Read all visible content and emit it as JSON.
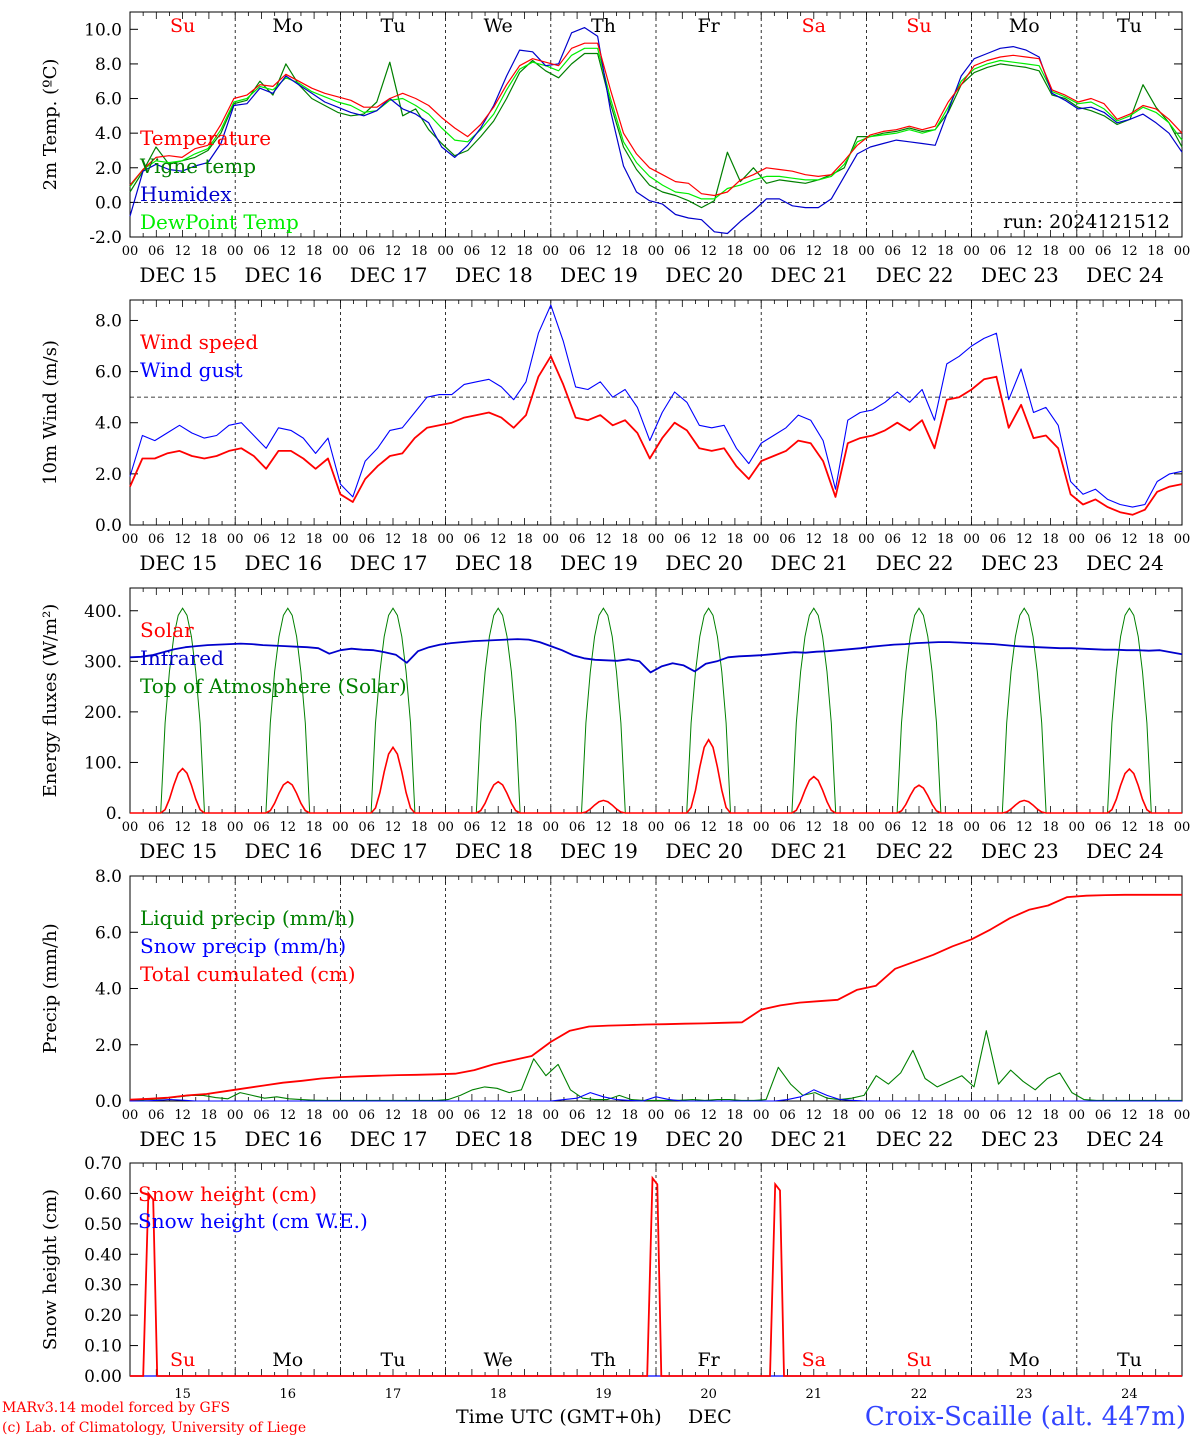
{
  "run_label": "run: 2024121512",
  "footer": {
    "model": "MARv3.14 model forced by GFS",
    "lab": "(c) Lab. of Climatology, University of Liege",
    "xlabel": "Time UTC (GMT+0h)",
    "month": "DEC",
    "station": "Croix-Scaille (alt. 447m)"
  },
  "hour_ticks": [
    "00",
    "06",
    "12",
    "18"
  ],
  "end_tick": "00",
  "dates": [
    "DEC 15",
    "DEC 16",
    "DEC 17",
    "DEC 18",
    "DEC 19",
    "DEC 20",
    "DEC 21",
    "DEC 22",
    "DEC 23",
    "DEC 24"
  ],
  "day_numbers": [
    "15",
    "16",
    "17",
    "18",
    "19",
    "20",
    "21",
    "22",
    "23",
    "24"
  ],
  "weekdays": [
    {
      "label": "Su",
      "color": "#ff0000"
    },
    {
      "label": "Mo",
      "color": "#000000"
    },
    {
      "label": "Tu",
      "color": "#000000"
    },
    {
      "label": "We",
      "color": "#000000"
    },
    {
      "label": "Th",
      "color": "#000000"
    },
    {
      "label": "Fr",
      "color": "#000000"
    },
    {
      "label": "Sa",
      "color": "#ff0000"
    },
    {
      "label": "Su",
      "color": "#ff0000"
    },
    {
      "label": "Mo",
      "color": "#000000"
    },
    {
      "label": "Tu",
      "color": "#000000"
    }
  ],
  "chart_data": [
    {
      "type": "line",
      "ylabel": "2m Temp. (ºC)",
      "ylim": [
        -2,
        11
      ],
      "yticks": [
        "-2.0",
        "0.0",
        "2.0",
        "4.0",
        "6.0",
        "8.0",
        "10.0"
      ],
      "ytick_values": [
        -2,
        0,
        2,
        4,
        6,
        8,
        10
      ],
      "hline": 0,
      "x": "hours since DEC 15 00 UTC, 3-hourly, 0..240",
      "series": [
        {
          "name": "Temperature",
          "color": "#ff0000",
          "values": [
            1.0,
            1.9,
            2.6,
            2.7,
            2.6,
            3.1,
            3.3,
            4.5,
            6.0,
            6.2,
            6.8,
            6.7,
            7.4,
            7.0,
            6.6,
            6.3,
            6.1,
            5.9,
            5.5,
            5.5,
            6.0,
            6.3,
            6.0,
            5.6,
            4.9,
            4.3,
            3.8,
            4.5,
            5.5,
            6.8,
            7.9,
            8.3,
            8.1,
            7.9,
            8.9,
            9.2,
            9.2,
            6.5,
            4.0,
            2.8,
            2.0,
            1.6,
            1.2,
            1.1,
            0.5,
            0.4,
            0.6,
            1.3,
            1.6,
            2.0,
            1.9,
            1.8,
            1.6,
            1.5,
            1.6,
            2.4,
            3.3,
            3.9,
            4.1,
            4.2,
            4.4,
            4.2,
            4.4,
            5.8,
            6.8,
            7.9,
            8.2,
            8.4,
            8.5,
            8.4,
            8.3,
            6.5,
            6.2,
            5.8,
            6.0,
            5.7,
            4.8,
            5.1,
            5.6,
            5.4,
            4.8,
            4.0
          ]
        },
        {
          "name": "Vigne temp",
          "color": "#008000",
          "values": [
            0.6,
            1.8,
            3.2,
            2.2,
            2.4,
            2.6,
            3.0,
            4.0,
            5.7,
            5.9,
            7.0,
            6.2,
            8.0,
            6.8,
            6.0,
            5.6,
            5.2,
            5.0,
            5.1,
            5.8,
            8.1,
            5.0,
            5.4,
            4.2,
            3.4,
            2.7,
            3.0,
            3.8,
            4.7,
            6.0,
            7.5,
            8.2,
            7.6,
            7.2,
            8.0,
            8.6,
            8.6,
            5.7,
            3.2,
            1.9,
            1.0,
            0.6,
            0.4,
            0.1,
            -0.3,
            0.1,
            2.9,
            1.2,
            2.0,
            1.1,
            1.3,
            1.2,
            1.1,
            1.3,
            1.6,
            2.0,
            3.8,
            3.8,
            4.0,
            4.1,
            4.3,
            4.1,
            4.2,
            5.2,
            6.8,
            7.5,
            7.8,
            8.0,
            7.9,
            7.8,
            7.6,
            6.2,
            6.0,
            5.5,
            5.3,
            5.0,
            4.5,
            4.8,
            6.8,
            5.5,
            4.6,
            3.2
          ]
        },
        {
          "name": "Humidex",
          "color": "#0000cc",
          "values": [
            -0.8,
            1.8,
            2.2,
            1.9,
            1.8,
            2.1,
            2.3,
            3.4,
            5.6,
            5.7,
            6.6,
            6.3,
            7.3,
            6.8,
            6.3,
            5.8,
            5.5,
            5.2,
            5.0,
            5.3,
            6.0,
            5.4,
            5.1,
            4.6,
            3.2,
            2.6,
            3.3,
            4.3,
            5.6,
            7.3,
            8.8,
            8.7,
            7.9,
            8.0,
            9.8,
            10.1,
            9.6,
            5.3,
            2.1,
            0.6,
            0.1,
            -0.1,
            -0.7,
            -0.9,
            -1.0,
            -1.7,
            -1.8,
            -1.1,
            -0.5,
            0.2,
            0.2,
            -0.2,
            -0.3,
            -0.3,
            0.2,
            1.5,
            2.8,
            3.2,
            3.4,
            3.6,
            3.5,
            3.4,
            3.3,
            5.3,
            7.3,
            8.3,
            8.6,
            8.9,
            9.0,
            8.8,
            8.4,
            6.3,
            5.9,
            5.4,
            5.5,
            5.2,
            4.6,
            4.8,
            5.1,
            4.6,
            4.0,
            2.9
          ]
        },
        {
          "name": "DewPoint Temp",
          "color": "#00ee00",
          "values": [
            0.9,
            1.9,
            2.4,
            2.3,
            2.4,
            2.8,
            3.1,
            4.2,
            5.8,
            6.0,
            6.7,
            6.5,
            7.2,
            6.9,
            6.4,
            6.1,
            5.8,
            5.6,
            5.2,
            5.3,
            5.9,
            6.0,
            5.6,
            5.1,
            4.3,
            3.6,
            3.5,
            4.2,
            5.1,
            6.5,
            7.7,
            8.1,
            7.9,
            7.6,
            8.5,
            8.9,
            8.9,
            6.0,
            3.5,
            2.3,
            1.5,
            1.0,
            0.6,
            0.5,
            0.2,
            0.2,
            0.8,
            1.0,
            1.3,
            1.5,
            1.5,
            1.4,
            1.3,
            1.3,
            1.5,
            2.2,
            3.5,
            3.8,
            3.9,
            4.0,
            4.2,
            4.0,
            4.2,
            5.5,
            7.0,
            7.7,
            8.0,
            8.2,
            8.1,
            8.0,
            7.9,
            6.4,
            6.1,
            5.7,
            5.8,
            5.4,
            4.7,
            5.0,
            5.5,
            5.2,
            4.6,
            3.6
          ]
        }
      ]
    },
    {
      "type": "line",
      "ylabel": "10m Wind (m/s)",
      "ylim": [
        0,
        8.8
      ],
      "yticks": [
        "0.0",
        "2.0",
        "4.0",
        "6.0",
        "8.0"
      ],
      "ytick_values": [
        0,
        2,
        4,
        6,
        8
      ],
      "hline": 5,
      "series": [
        {
          "name": "Wind speed",
          "color": "#ff0000",
          "values": [
            1.5,
            2.6,
            2.6,
            2.8,
            2.9,
            2.7,
            2.6,
            2.7,
            2.9,
            3.0,
            2.7,
            2.2,
            2.9,
            2.9,
            2.6,
            2.2,
            2.6,
            1.2,
            0.9,
            1.8,
            2.3,
            2.7,
            2.8,
            3.4,
            3.8,
            3.9,
            4.0,
            4.2,
            4.3,
            4.4,
            4.2,
            3.8,
            4.3,
            5.8,
            6.6,
            5.5,
            4.2,
            4.1,
            4.3,
            3.9,
            4.1,
            3.6,
            2.6,
            3.4,
            4.0,
            3.7,
            3.0,
            2.9,
            3.0,
            2.3,
            1.8,
            2.5,
            2.7,
            2.9,
            3.3,
            3.2,
            2.5,
            1.1,
            3.2,
            3.4,
            3.5,
            3.7,
            4.0,
            3.7,
            4.1,
            3.0,
            4.9,
            5.0,
            5.3,
            5.7,
            5.8,
            3.8,
            4.7,
            3.4,
            3.5,
            3.0,
            1.2,
            0.8,
            1.0,
            0.7,
            0.5,
            0.4,
            0.6,
            1.3,
            1.5,
            1.6
          ]
        },
        {
          "name": "Wind gust",
          "color": "#0000ff",
          "values": [
            1.9,
            3.5,
            3.3,
            3.6,
            3.9,
            3.6,
            3.4,
            3.5,
            3.9,
            4.0,
            3.5,
            3.0,
            3.8,
            3.7,
            3.4,
            2.8,
            3.4,
            1.6,
            1.1,
            2.5,
            3.0,
            3.7,
            3.8,
            4.4,
            5.0,
            5.1,
            5.1,
            5.5,
            5.6,
            5.7,
            5.4,
            4.9,
            5.6,
            7.5,
            8.6,
            7.2,
            5.4,
            5.3,
            5.6,
            5.0,
            5.3,
            4.6,
            3.3,
            4.4,
            5.2,
            4.8,
            3.9,
            3.8,
            3.9,
            3.0,
            2.4,
            3.2,
            3.5,
            3.8,
            4.3,
            4.1,
            3.3,
            1.4,
            4.1,
            4.4,
            4.5,
            4.8,
            5.2,
            4.8,
            5.3,
            4.1,
            6.3,
            6.6,
            7.0,
            7.3,
            7.5,
            4.9,
            6.1,
            4.4,
            4.6,
            3.9,
            1.7,
            1.2,
            1.4,
            1.0,
            0.8,
            0.7,
            0.8,
            1.7,
            2.0,
            2.1
          ]
        }
      ]
    },
    {
      "type": "line",
      "ylabel": "Energy fluxes (W/m²)",
      "ylim": [
        0,
        445
      ],
      "yticks": [
        "0.",
        "100.",
        "200.",
        "300.",
        "400."
      ],
      "ytick_values": [
        0,
        100,
        200,
        300,
        400
      ],
      "daily_solar_peak": [
        88,
        62,
        130,
        62,
        25,
        145,
        72,
        55,
        25,
        87
      ],
      "daily_toa_peak": [
        405,
        405,
        405,
        405,
        405,
        405,
        405,
        405,
        405,
        405
      ],
      "series": [
        {
          "name": "Solar",
          "color": "#ff0000"
        },
        {
          "name": "Infrared",
          "color": "#0000cc",
          "values": [
            308,
            309,
            312,
            318,
            324,
            328,
            330,
            332,
            333,
            334,
            335,
            334,
            332,
            331,
            330,
            329,
            328,
            326,
            315,
            322,
            325,
            323,
            322,
            318,
            313,
            297,
            320,
            328,
            333,
            336,
            338,
            340,
            341,
            342,
            343,
            344,
            343,
            338,
            330,
            322,
            312,
            306,
            303,
            302,
            301,
            304,
            300,
            278,
            290,
            296,
            292,
            280,
            295,
            300,
            308,
            310,
            311,
            312,
            314,
            316,
            318,
            317,
            319,
            320,
            322,
            324,
            326,
            329,
            331,
            333,
            334,
            336,
            337,
            338,
            338,
            337,
            336,
            335,
            334,
            332,
            330,
            329,
            328,
            327,
            326,
            326,
            325,
            324,
            323,
            323,
            322,
            322,
            321,
            322,
            318,
            314
          ]
        },
        {
          "name": "Top of Atmosphere (Solar)",
          "color": "#008000"
        }
      ]
    },
    {
      "type": "line",
      "ylabel": "Precip (mm/h)",
      "ylim": [
        0,
        8
      ],
      "yticks": [
        "0.0",
        "2.0",
        "4.0",
        "6.0",
        "8.0"
      ],
      "ytick_values": [
        0,
        2,
        4,
        6,
        8
      ],
      "series": [
        {
          "name": "Liquid precip (mm/h)",
          "color": "#008000",
          "values": [
            0.02,
            0.04,
            0.06,
            0.1,
            0.15,
            0.2,
            0.2,
            0.12,
            0.08,
            0.3,
            0.2,
            0.1,
            0.15,
            0.08,
            0.05,
            0.03,
            0.02,
            0.02,
            0.02,
            0.02,
            0.02,
            0.02,
            0.02,
            0.02,
            0.02,
            0.02,
            0.05,
            0.2,
            0.4,
            0.5,
            0.45,
            0.3,
            0.4,
            1.5,
            0.9,
            1.3,
            0.4,
            0.1,
            0.05,
            0.05,
            0.2,
            0.05,
            0.02,
            0.02,
            0.02,
            0.03,
            0.05,
            0.02,
            0.05,
            0.05,
            0.02,
            0.02,
            0.05,
            1.2,
            0.6,
            0.2,
            0.3,
            0.1,
            0.05,
            0.1,
            0.2,
            0.9,
            0.6,
            1.0,
            1.8,
            0.8,
            0.5,
            0.7,
            0.9,
            0.5,
            2.5,
            0.6,
            1.1,
            0.7,
            0.4,
            0.8,
            1.0,
            0.3,
            0.05,
            0.02,
            0.02,
            0.02,
            0.02,
            0.02,
            0.02,
            0.02,
            0.02
          ]
        },
        {
          "name": "Snow precip (mm/h)",
          "color": "#0000ff",
          "values": [
            0.0,
            0.0,
            0.02,
            0.05,
            0.03,
            0.0,
            0.0,
            0.0,
            0.0,
            0.0,
            0.0,
            0.0,
            0.0,
            0.0,
            0.0,
            0.0,
            0.0,
            0.0,
            0.0,
            0.0,
            0.0,
            0.0,
            0.0,
            0.0,
            0.0,
            0.0,
            0.0,
            0.0,
            0.0,
            0.0,
            0.0,
            0.0,
            0.0,
            0.05,
            0.1,
            0.3,
            0.15,
            0.05,
            0.02,
            0.0,
            0.15,
            0.05,
            0.0,
            0.0,
            0.0,
            0.0,
            0.0,
            0.0,
            0.0,
            0.0,
            0.05,
            0.15,
            0.4,
            0.2,
            0.05,
            0.02,
            0.0,
            0.0,
            0.0,
            0.0,
            0.0,
            0.0,
            0.0,
            0.0,
            0.0,
            0.0,
            0.0,
            0.0,
            0.0,
            0.0,
            0.0,
            0.0,
            0.0,
            0.0,
            0.0,
            0.0,
            0.0,
            0.0,
            0.0,
            0.0,
            0.0
          ]
        },
        {
          "name": "Total cumulated (cm)",
          "color": "#ff0000",
          "values": [
            0.05,
            0.08,
            0.12,
            0.2,
            0.25,
            0.35,
            0.45,
            0.55,
            0.65,
            0.72,
            0.8,
            0.85,
            0.88,
            0.9,
            0.92,
            0.93,
            0.95,
            0.97,
            1.1,
            1.3,
            1.45,
            1.6,
            2.1,
            2.5,
            2.65,
            2.68,
            2.7,
            2.72,
            2.73,
            2.75,
            2.76,
            2.78,
            2.8,
            3.25,
            3.4,
            3.5,
            3.55,
            3.6,
            3.95,
            4.1,
            4.7,
            4.95,
            5.2,
            5.5,
            5.75,
            6.1,
            6.5,
            6.8,
            6.95,
            7.25,
            7.3,
            7.32,
            7.33,
            7.33,
            7.33,
            7.33
          ]
        }
      ]
    },
    {
      "type": "line",
      "ylabel": "Snow height (cm)",
      "ylim": [
        0,
        0.7
      ],
      "yticks": [
        "0.00",
        "0.10",
        "0.20",
        "0.30",
        "0.40",
        "0.50",
        "0.60",
        "0.70"
      ],
      "ytick_values": [
        0,
        0.1,
        0.2,
        0.3,
        0.4,
        0.5,
        0.6,
        0.7
      ],
      "spikes": [
        {
          "hour": 5,
          "value": 0.6
        },
        {
          "hour": 120,
          "value": 0.65
        },
        {
          "hour": 148,
          "value": 0.63
        }
      ],
      "series": [
        {
          "name": "Snow height (cm)",
          "color": "#ff0000"
        },
        {
          "name": "Snow height (cm W.E.)",
          "color": "#0000ff"
        }
      ]
    }
  ]
}
